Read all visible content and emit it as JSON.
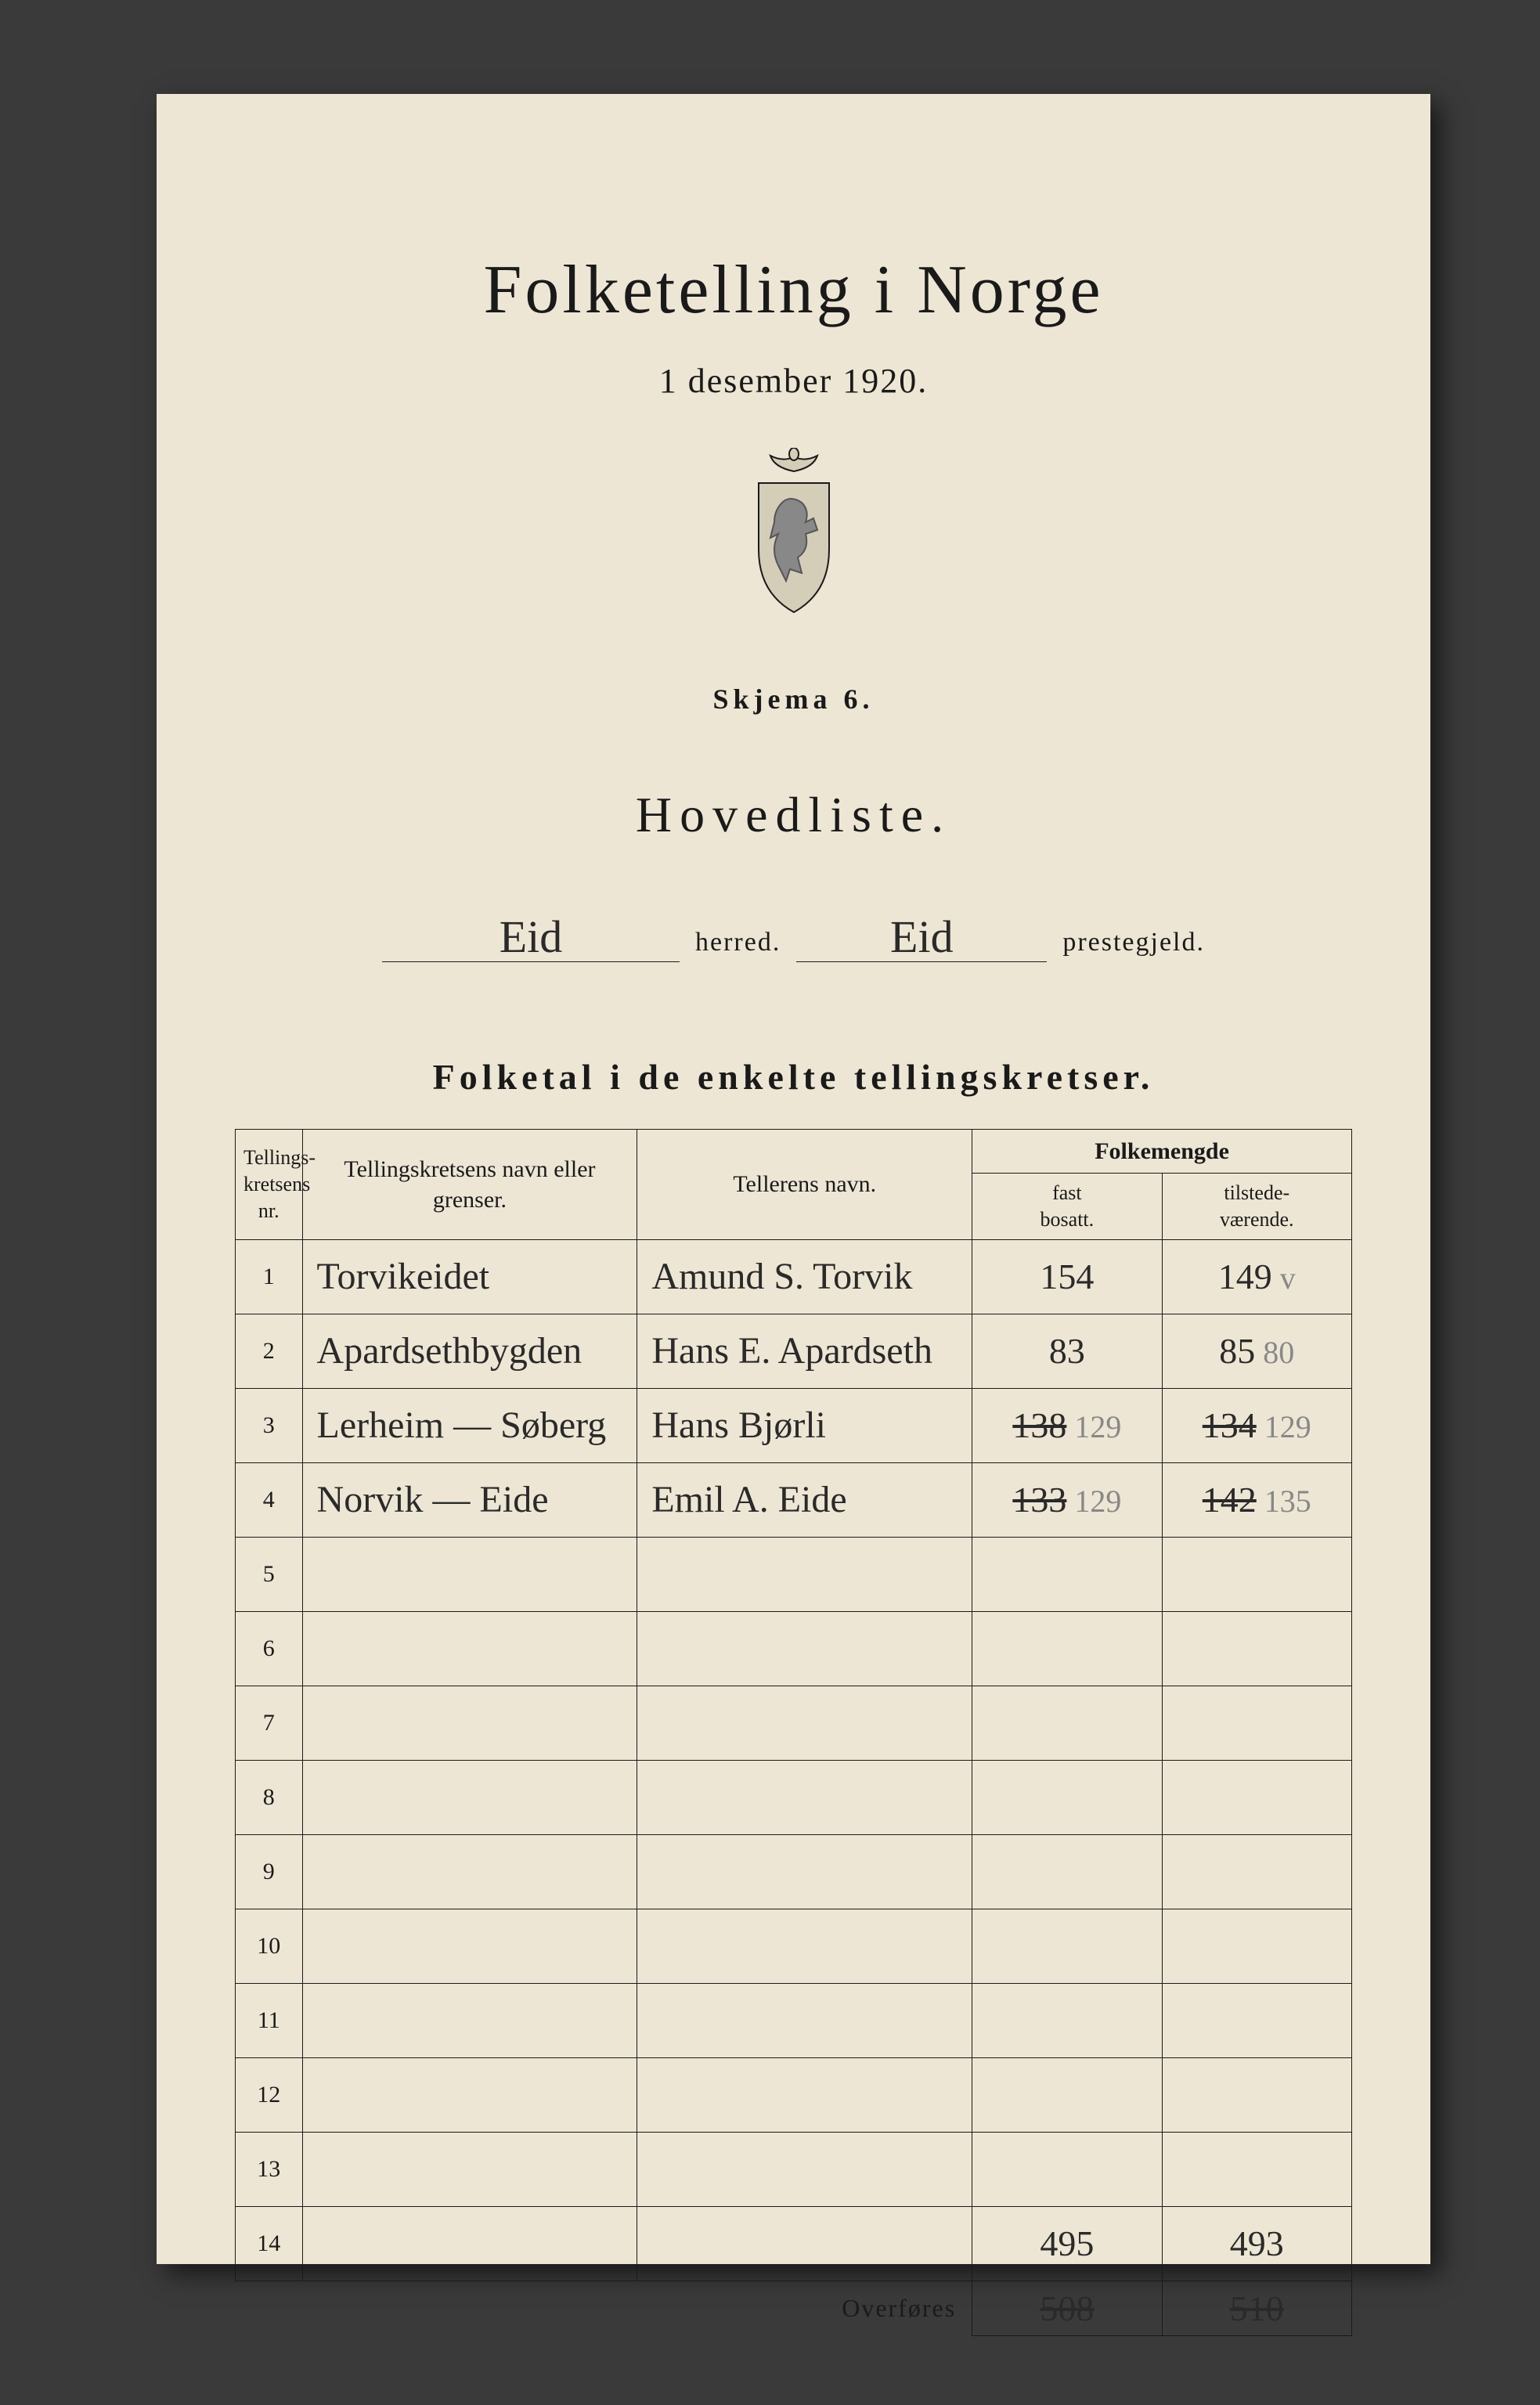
{
  "title": "Folketelling i Norge",
  "subtitle": "1 desember 1920.",
  "skjema": "Skjema 6.",
  "hovedliste": "Hovedliste.",
  "location": {
    "herred_value": "Eid",
    "herred_label": "herred.",
    "prestegjeld_value": "Eid",
    "prestegjeld_label": "prestegjeld."
  },
  "section_heading": "Folketal i de enkelte tellingskretser.",
  "table": {
    "headers": {
      "nr": "Tellings-\nkretsens\nnr.",
      "name": "Tellingskretsens navn eller grenser.",
      "teller": "Tellerens navn.",
      "folkemengde": "Folkemengde",
      "fast": "fast\nbosatt.",
      "tilstede": "tilstede-\nværende."
    },
    "rows": [
      {
        "nr": "1",
        "name": "Torvikeidet",
        "teller": "Amund S. Torvik",
        "fast": "154",
        "fast_alt": "",
        "til": "149",
        "til_alt": "v"
      },
      {
        "nr": "2",
        "name": "Apardsethbygden",
        "teller": "Hans E. Apardseth",
        "fast": "83",
        "fast_alt": "",
        "til": "85",
        "til_alt": "80"
      },
      {
        "nr": "3",
        "name": "Lerheim — Søberg",
        "teller": "Hans Bjørli",
        "fast": "138",
        "fast_strike": true,
        "fast_alt": "129",
        "til": "134",
        "til_strike": true,
        "til_alt": "129"
      },
      {
        "nr": "4",
        "name": "Norvik — Eide",
        "teller": "Emil A. Eide",
        "fast": "133",
        "fast_strike": true,
        "fast_alt": "129",
        "til": "142",
        "til_strike": true,
        "til_alt": "135"
      },
      {
        "nr": "5"
      },
      {
        "nr": "6"
      },
      {
        "nr": "7"
      },
      {
        "nr": "8"
      },
      {
        "nr": "9"
      },
      {
        "nr": "10"
      },
      {
        "nr": "11"
      },
      {
        "nr": "12"
      },
      {
        "nr": "13"
      },
      {
        "nr": "14",
        "fast": "495",
        "til": "493"
      }
    ],
    "overfores_label": "Overføres",
    "overfores_fast": "508",
    "overfores_til": "510"
  },
  "colors": {
    "paper": "#ede6d4",
    "ink": "#1a1a1a",
    "handwriting": "#2a2a2a",
    "background": "#3a3a3a"
  }
}
